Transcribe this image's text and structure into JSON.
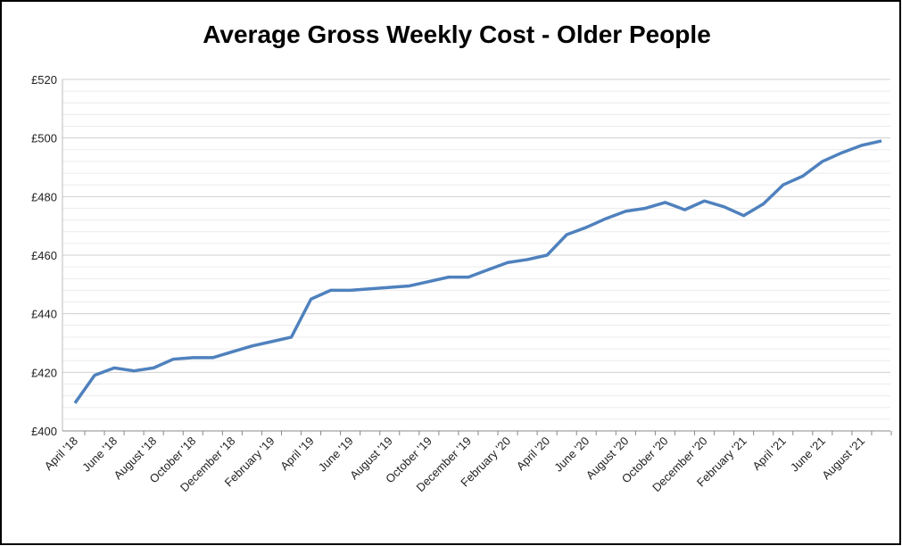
{
  "chart_data": {
    "type": "line",
    "title": "Average Gross Weekly Cost - Older People",
    "categories": [
      "April '18",
      null,
      "June '18",
      null,
      "August '18",
      null,
      "October '18",
      null,
      "December '18",
      null,
      "February '19",
      null,
      "April '19",
      null,
      "June '19",
      null,
      "August '19",
      null,
      "October '19",
      null,
      "December '19",
      null,
      "February '20",
      null,
      "April '20",
      null,
      "June '20",
      null,
      "August '20",
      null,
      "October '20",
      null,
      "December '20",
      null,
      "February '21",
      null,
      "April '21",
      null,
      "June '21",
      null,
      "August '21",
      null
    ],
    "series": [
      {
        "name": "Average Gross Weekly Cost",
        "color": "#4f81bd",
        "values": [
          409.5,
          419,
          421.5,
          420.5,
          421.5,
          424.5,
          425,
          425,
          427,
          429,
          430.5,
          432,
          445,
          448,
          448,
          448.5,
          449,
          449.5,
          451,
          452.5,
          452.5,
          455,
          457.5,
          458.5,
          460,
          467,
          469.5,
          472.5,
          475,
          476,
          478,
          475.5,
          478.5,
          476.5,
          473.5,
          477.5,
          484,
          487,
          492,
          495,
          497.5,
          499
        ]
      }
    ],
    "ylim": [
      400,
      520
    ],
    "yticks": [
      {
        "value": 400,
        "label": "£400"
      },
      {
        "value": 420,
        "label": "£420"
      },
      {
        "value": 440,
        "label": "£440"
      },
      {
        "value": 460,
        "label": "£460"
      },
      {
        "value": 480,
        "label": "£480"
      },
      {
        "value": 500,
        "label": "£500"
      },
      {
        "value": 520,
        "label": "£520"
      }
    ],
    "minor_yticks": [
      404,
      408,
      412,
      416,
      424,
      428,
      432,
      436,
      444,
      448,
      452,
      456,
      464,
      468,
      472,
      476,
      484,
      488,
      492,
      496,
      504,
      508,
      512,
      516
    ],
    "grid": true
  }
}
